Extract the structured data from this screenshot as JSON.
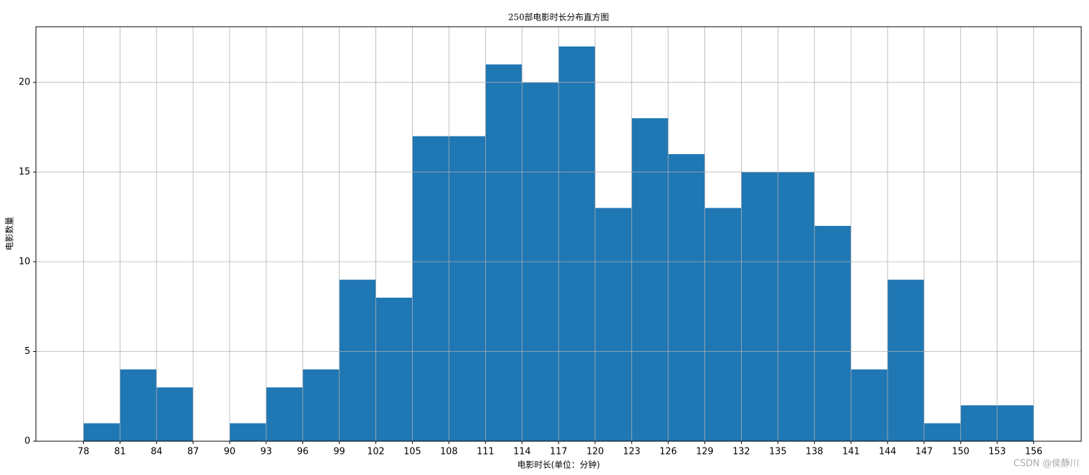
{
  "chart_data": {
    "type": "histogram",
    "title": "250部电影时长分布直方图",
    "xlabel": "电影时长(单位：分钟)",
    "ylabel": "电影数量",
    "bins": [
      78,
      81,
      84,
      87,
      90,
      93,
      96,
      99,
      102,
      105,
      108,
      111,
      114,
      117,
      120,
      123,
      126,
      129,
      132,
      135,
      138,
      141,
      144,
      147,
      150,
      153,
      156
    ],
    "values": [
      1,
      4,
      3,
      0,
      1,
      3,
      4,
      9,
      8,
      17,
      17,
      21,
      20,
      22,
      13,
      18,
      16,
      13,
      15,
      15,
      12,
      4,
      9,
      1,
      2,
      2
    ],
    "color": "#1f77b4",
    "xlim": [
      74.1,
      159.9
    ],
    "xticks": [
      78,
      81,
      84,
      87,
      90,
      93,
      96,
      99,
      102,
      105,
      108,
      111,
      114,
      117,
      120,
      123,
      126,
      129,
      132,
      135,
      138,
      141,
      144,
      147,
      150,
      153,
      156
    ],
    "ylim": [
      0,
      23.1
    ],
    "yticks": [
      0,
      5,
      10,
      15,
      20
    ],
    "grid": true,
    "annotation": "CSDN @侯静川"
  }
}
